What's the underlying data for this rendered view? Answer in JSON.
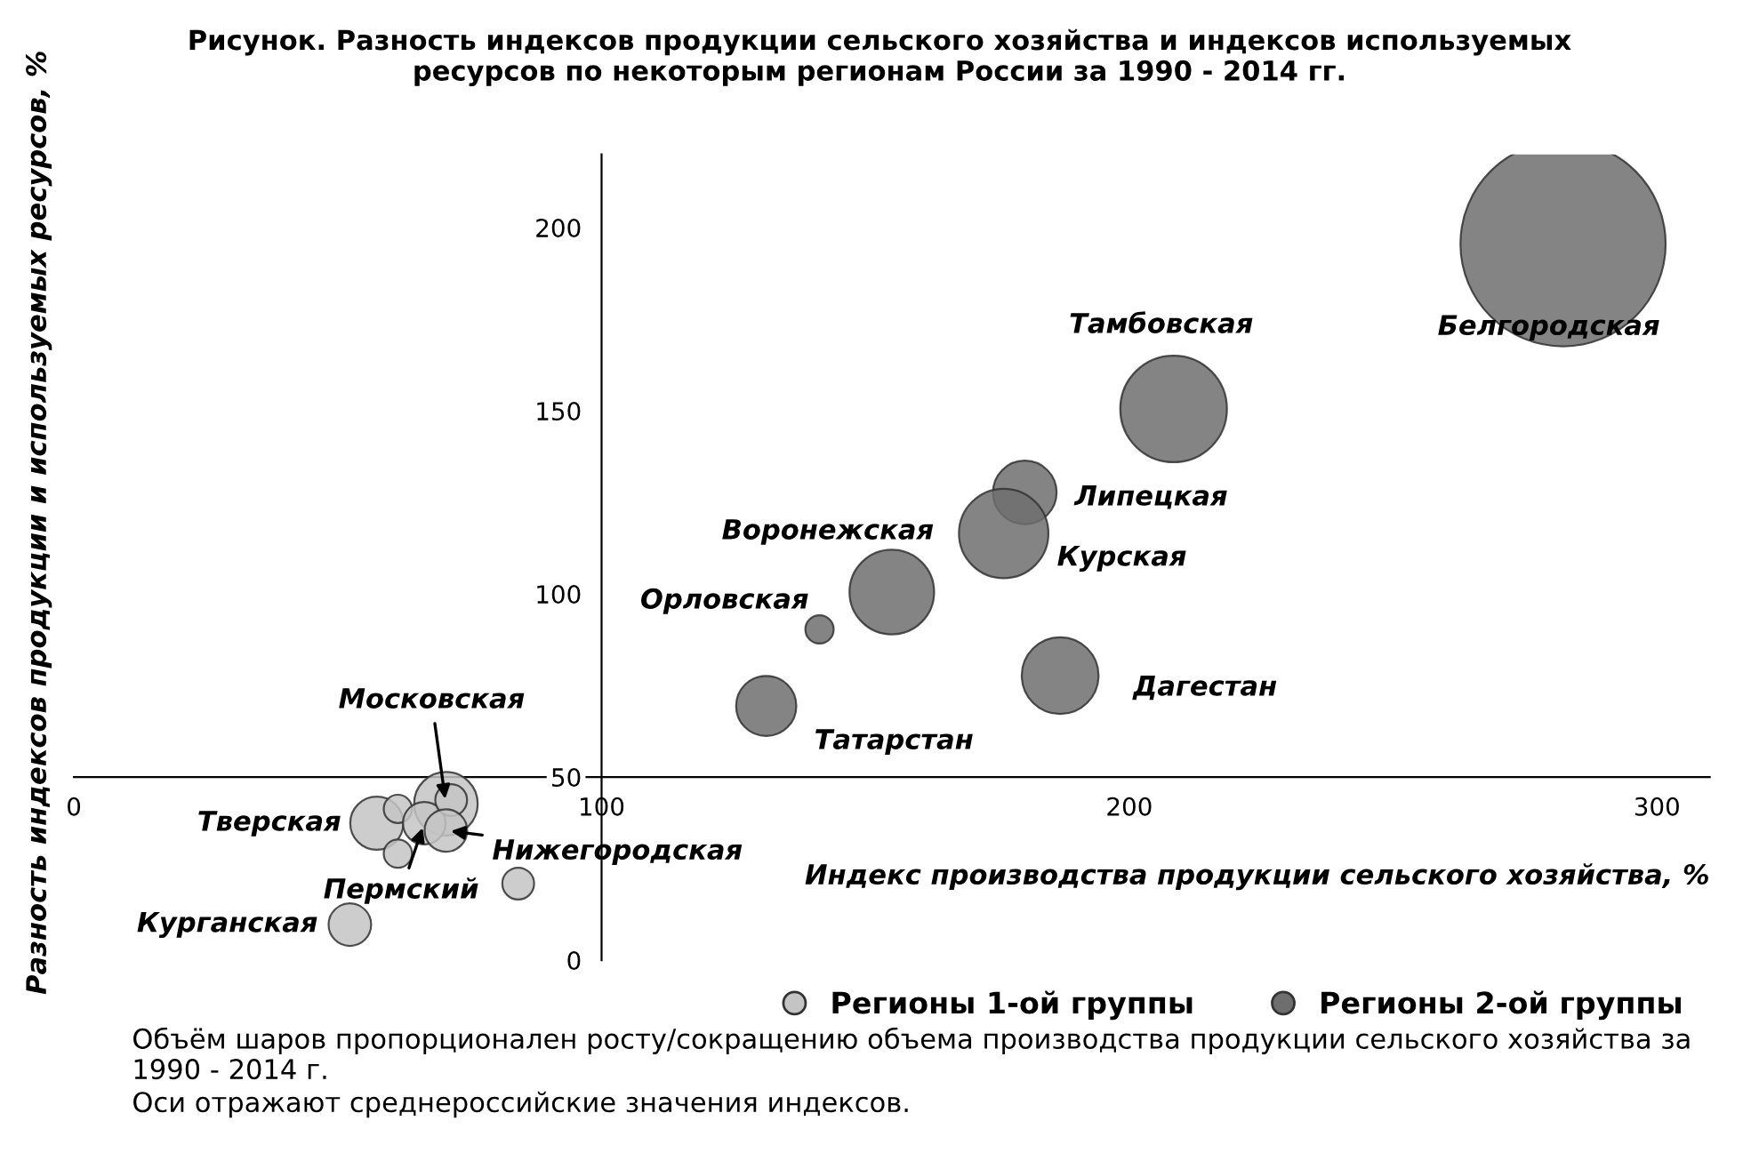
{
  "chart_data": {
    "type": "bubble",
    "title": "Рисунок. Разность индексов продукции сельского хозяйства и индексов используемых\nресурсов по некоторым регионам России за 1990 - 2014 гг.",
    "xlabel": "Индекс производства продукции сельского хозяйства, %",
    "ylabel": "Разность индексов продукции и используемых ресурсов, %",
    "series": [
      {
        "name": "Регионы 1-ой группы",
        "color": "#c4c4c4",
        "x": [
          70.5,
          57.4,
          61.4,
          61.4,
          66.4,
          71.5,
          70.5,
          84.2,
          52.3
        ],
        "values": [
          42.7,
          37.4,
          41.3,
          29.1,
          37.4,
          43.7,
          35.4,
          20.9,
          9.7
        ],
        "sizes": [
          0.096,
          0.067,
          0.019,
          0.019,
          0.043,
          0.024,
          0.043,
          0.024,
          0.043
        ]
      },
      {
        "name": "Регионы 2-ой группы",
        "color": "#6e6e6e",
        "x": [
          141.3,
          155,
          131.2,
          180.2,
          176.2,
          186.9,
          208.4,
          282.2
        ],
        "values": [
          90.3,
          100.5,
          69.4,
          127.7,
          116.5,
          77.7,
          150.5,
          195.6
        ],
        "sizes": [
          0.019,
          0.17,
          0.086,
          0.096,
          0.19,
          0.14,
          0.27,
          1
        ]
      }
    ],
    "xlim": [
      0,
      310
    ],
    "ylim": [
      0,
      220
    ],
    "xticks": [
      0,
      100,
      200,
      300
    ],
    "yticks": [
      0,
      50,
      100,
      150,
      200
    ],
    "grid": false,
    "legend": "bottom right",
    "annotations": [
      {
        "text": "Московская",
        "x": 70.5,
        "y": 42.7
      },
      {
        "text": "Тверская",
        "x": 57.4,
        "y": 37.4
      },
      {
        "text": "Пермский",
        "x": 66.4,
        "y": 37.4
      },
      {
        "text": "Нижегородская",
        "x": 70.5,
        "y": 35.4
      },
      {
        "text": "Курганская",
        "x": 52.3,
        "y": 9.7
      },
      {
        "text": "Орловская",
        "x": 141.3,
        "y": 90.3
      },
      {
        "text": "Воронежская",
        "x": 155,
        "y": 100.5
      },
      {
        "text": "Татарстан",
        "x": 131.2,
        "y": 69.4
      },
      {
        "text": "Липецкая",
        "x": 180.2,
        "y": 127.7
      },
      {
        "text": "Курская",
        "x": 176.2,
        "y": 116.5
      },
      {
        "text": "Дагестан",
        "x": 186.9,
        "y": 77.7
      },
      {
        "text": "Тамбовская",
        "x": 208.4,
        "y": 150.5
      },
      {
        "text": "Белгородская",
        "x": 282.2,
        "y": 195.6
      },
      "Объём шаров пропорционален росту/сокращению объема производства продукции сельского хозяйства за 1990 - 2014 г.",
      "Оси отражают среднероссийские значения индексов."
    ]
  }
}
